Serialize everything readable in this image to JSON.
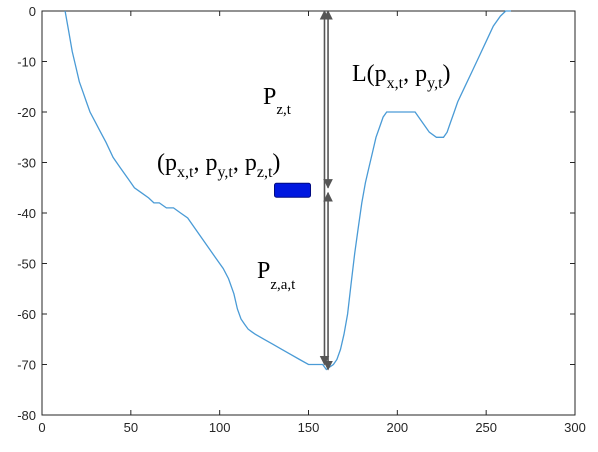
{
  "chart_data": {
    "type": "line",
    "title": "",
    "xlabel": "",
    "ylabel": "",
    "xlim": [
      0,
      300
    ],
    "ylim": [
      -80,
      0
    ],
    "xticks": [
      0,
      50,
      100,
      150,
      200,
      250,
      300
    ],
    "yticks": [
      0,
      -10,
      -20,
      -30,
      -40,
      -50,
      -60,
      -70,
      -80
    ],
    "grid": false,
    "colors": {
      "line": "#4a9bd6",
      "arrow": "#555555",
      "marker": "#0018e0",
      "marker_edge": "#000a80"
    },
    "series": [
      {
        "x": [
          13,
          15,
          17,
          19,
          21,
          23,
          25,
          27,
          30,
          33,
          36,
          40,
          44,
          48,
          52,
          56,
          60,
          63,
          66,
          70,
          74,
          78,
          82,
          86,
          90,
          94,
          98,
          102,
          105,
          108,
          110,
          112,
          114,
          116,
          118,
          120,
          125,
          130,
          135,
          140,
          145,
          150,
          153,
          156,
          158,
          160,
          162,
          164,
          166,
          168,
          170,
          172,
          174,
          176,
          178,
          180,
          182,
          184,
          186,
          188,
          190,
          192,
          194,
          196,
          198,
          200,
          210,
          214,
          218,
          222,
          224,
          226,
          228,
          230,
          232,
          234,
          238,
          242,
          246,
          250,
          254,
          258,
          261,
          264
        ],
        "y": [
          0,
          -4,
          -8,
          -11,
          -14,
          -16,
          -18,
          -20,
          -22,
          -24,
          -26,
          -29,
          -31,
          -33,
          -35,
          -36,
          -37,
          -38,
          -38,
          -39,
          -39,
          -40,
          -41,
          -43,
          -45,
          -47,
          -49,
          -51,
          -53,
          -56,
          -59,
          -61,
          -62,
          -63,
          -63.5,
          -64,
          -65,
          -66,
          -67,
          -68,
          -69,
          -70,
          -70,
          -70,
          -70,
          -71,
          -70.5,
          -70,
          -69,
          -67,
          -64,
          -60,
          -54,
          -48,
          -43,
          -38,
          -34,
          -31,
          -28,
          -25,
          -23,
          -21,
          -20,
          -20,
          -20,
          -20,
          -20,
          -22,
          -24,
          -25,
          -25,
          -25,
          -24,
          -22,
          -20,
          -18,
          -15,
          -12,
          -9,
          -6,
          -3,
          -1,
          0,
          0
        ]
      }
    ],
    "annotations": [
      {
        "kind": "arrow",
        "x": 159,
        "y_start": -70,
        "y_end": 0
      },
      {
        "kind": "arrow",
        "x": 161,
        "y_start": 0,
        "y_end": -35
      },
      {
        "kind": "arrow",
        "x": 161,
        "y_start": -36,
        "y_end": -71
      },
      {
        "kind": "marker",
        "x": 141,
        "y": -35.5
      }
    ]
  },
  "labels": {
    "L": {
      "main": "L(p",
      "s1": "x,t",
      "mid": ", p",
      "s2": "y,t",
      "end": ")"
    },
    "pzt": {
      "main": "P",
      "sub": "z,t"
    },
    "pzat": {
      "main": "P",
      "sub": "z,a,t"
    },
    "point": {
      "a": "(p",
      "s1": "x,t",
      "b": ", p",
      "s2": "y,t",
      "c": ", p",
      "s3": "z,t",
      "d": ")"
    }
  }
}
